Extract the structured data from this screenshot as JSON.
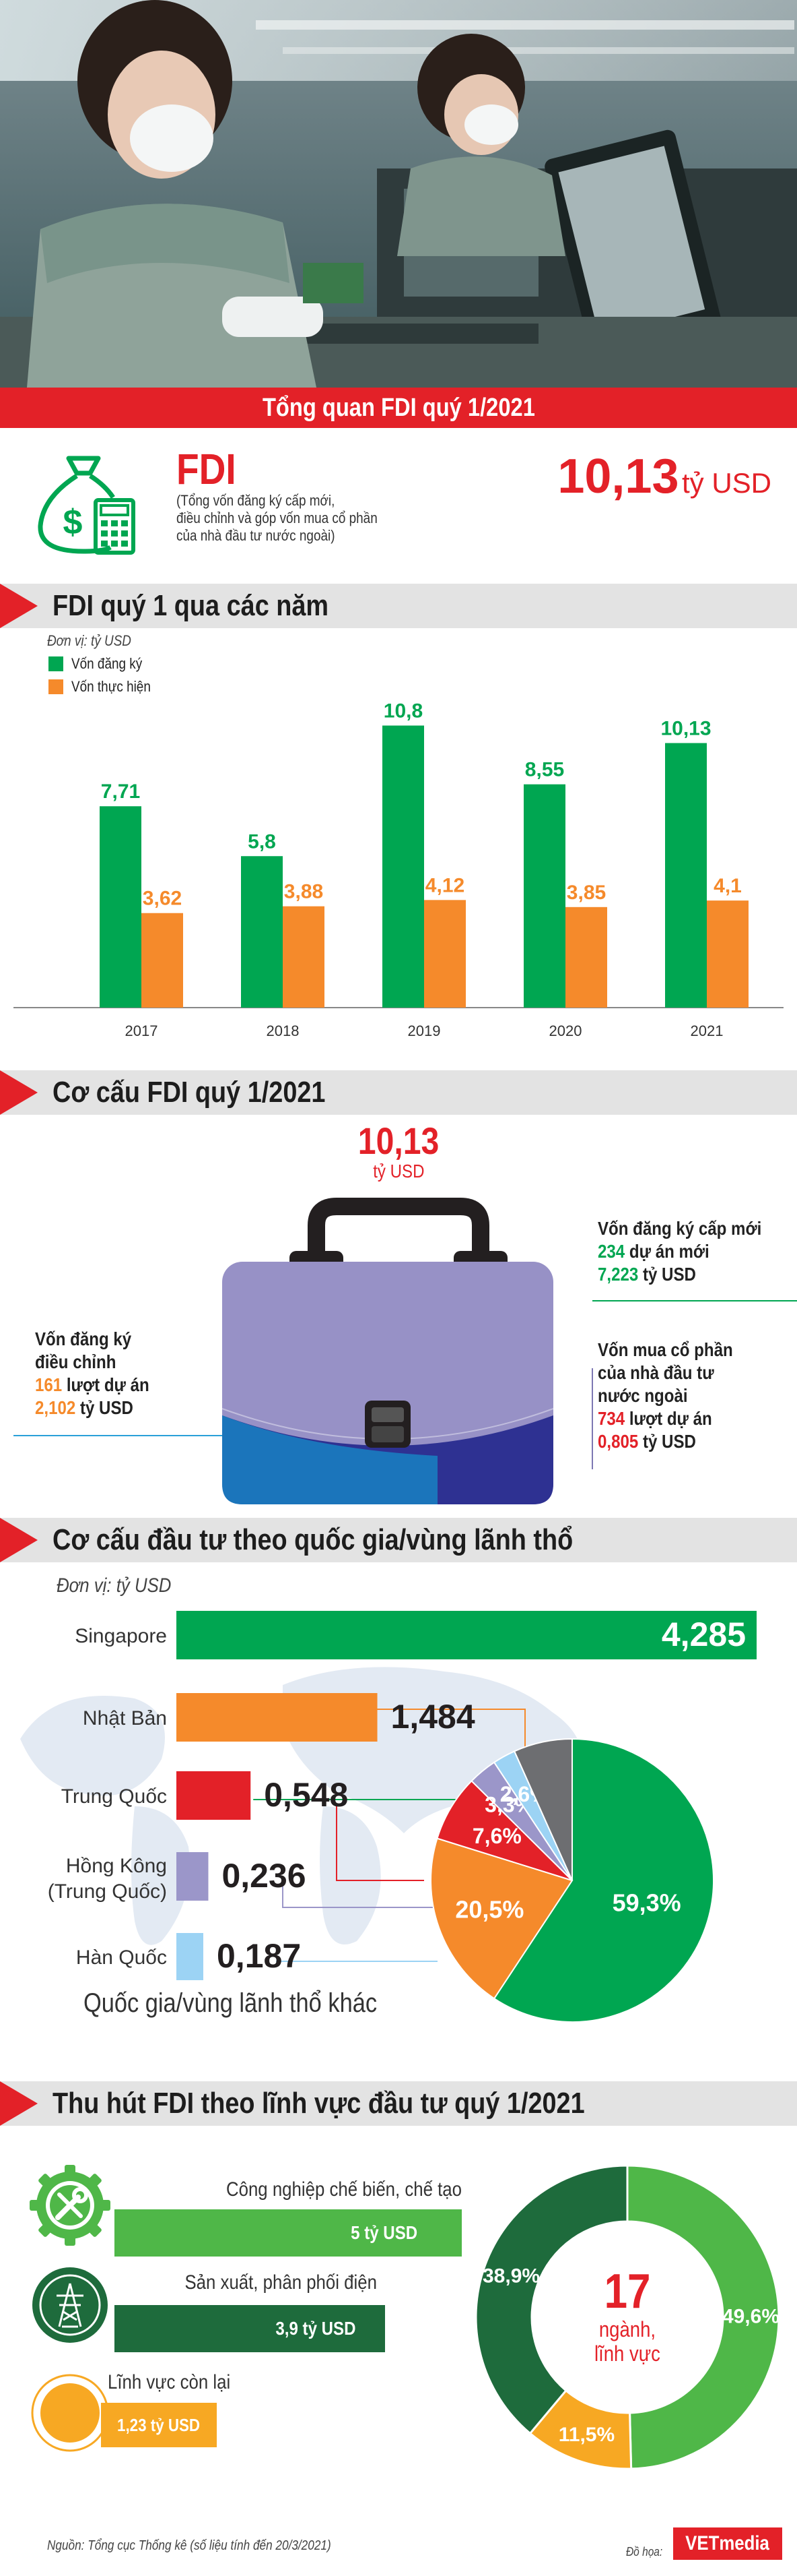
{
  "banner_title": "Tổng quan FDI quý 1/2021",
  "summary": {
    "label": "FDI",
    "description_lines": [
      "(Tổng vốn đăng ký cấp mới,",
      "điều chỉnh và góp vốn mua cổ phần",
      "của nhà đầu tư nước ngoài)"
    ],
    "total_value": "10,13",
    "total_unit": "tỷ USD"
  },
  "section1_title": "FDI quý 1 qua các năm",
  "section2_title": "Cơ cấu FDI quý 1/2021",
  "section3_title": "Cơ cấu đầu tư theo quốc gia/vùng lãnh thổ",
  "section4_title": "Thu hút FDI theo lĩnh vực đầu tư quý 1/2021",
  "colors": {
    "red": "#e32128",
    "green": "#00a651",
    "orange": "#f58a2b",
    "dark_green": "#1e6b3c",
    "light_green": "#4fb748",
    "yellow": "#f7a823",
    "purple": "#9b96c9",
    "light_blue": "#9cd3f4",
    "gray": "#6d6e71",
    "bag_purple": "#9791c6"
  },
  "structure": {
    "total_value": "10,13",
    "total_unit": "tỷ USD",
    "new": {
      "title": "Vốn đăng ký cấp mới",
      "projects_value": "234",
      "projects_text": "dự án mới",
      "capital_value": "7,223",
      "capital_unit": "tỷ USD"
    },
    "adjusted": {
      "title_lines": [
        "Vốn đăng ký",
        "điều chỉnh"
      ],
      "projects_value": "161",
      "projects_text": "lượt dự án",
      "capital_value": "2,102",
      "capital_unit": "tỷ USD"
    },
    "shares": {
      "title_lines": [
        "Vốn mua cổ phần",
        "của nhà đầu tư",
        "nước ngoài"
      ],
      "projects_value": "734",
      "projects_text": "lượt dự án",
      "capital_value": "0,805",
      "capital_unit": "tỷ USD"
    }
  },
  "sectors": {
    "items": [
      {
        "label": "Công nghiệp chế biến, chế tạo",
        "value_text": "5 tỷ USD",
        "icon": "gear-wrench-icon"
      },
      {
        "label": "Sản xuất, phân phối điện",
        "value_text": "3,9 tỷ USD",
        "icon": "power-tower-icon"
      },
      {
        "label": "Lĩnh vực còn lại",
        "value_text": "1,23 tỷ USD",
        "icon": "circle-icon"
      }
    ],
    "donut_center_number": "17",
    "donut_center_line1": "ngành,",
    "donut_center_line2": "lĩnh vực"
  },
  "footer": {
    "source": "Nguồn: Tổng cục Thống kê (số liệu tính đến 20/3/2021)",
    "credit_label": "Đồ họa:",
    "brand": "VETmedia"
  },
  "chart_data": [
    {
      "type": "bar",
      "unit_label": "Đơn vị: tỷ USD",
      "categories": [
        "2017",
        "2018",
        "2019",
        "2020",
        "2021"
      ],
      "series": [
        {
          "name": "Vốn đăng ký",
          "values": [
            7.71,
            5.8,
            10.8,
            8.55,
            10.13
          ],
          "labels": [
            "7,71",
            "5,8",
            "10,8",
            "8,55",
            "10,13"
          ],
          "color": "#00a651"
        },
        {
          "name": "Vốn thực hiện",
          "values": [
            3.62,
            3.88,
            4.12,
            3.85,
            4.1
          ],
          "labels": [
            "3,62",
            "3,88",
            "4,12",
            "3,85",
            "4,1"
          ],
          "color": "#f58a2b"
        }
      ],
      "legend": "top-left"
    },
    {
      "type": "bar",
      "orientation": "horizontal",
      "unit_label": "Đơn vị: tỷ USD",
      "categories": [
        "Singapore",
        "Nhật Bản",
        "Trung Quốc",
        "Hồng Kông (Trung Quốc)",
        "Hàn Quốc"
      ],
      "values": [
        4.285,
        1.484,
        0.548,
        0.236,
        0.187
      ],
      "labels": [
        "4,285",
        "1,484",
        "0,548",
        "0,236",
        "0,187"
      ],
      "colors": [
        "#00a651",
        "#f58a2b",
        "#e32128",
        "#9b96c9",
        "#9cd3f4"
      ]
    },
    {
      "type": "pie",
      "categories": [
        "Singapore",
        "Nhật Bản",
        "Trung Quốc",
        "Hồng Kông (Trung Quốc)",
        "Hàn Quốc",
        "Quốc gia/vùng lãnh thổ khác"
      ],
      "values": [
        59.3,
        20.5,
        7.6,
        3.3,
        2.6,
        6.7
      ],
      "labels": [
        "59,3%",
        "20,5%",
        "7,6%",
        "3,3%",
        "2,6%",
        ""
      ],
      "colors": [
        "#00a651",
        "#f58a2b",
        "#e32128",
        "#9b96c9",
        "#9cd3f4",
        "#6d6e71"
      ]
    },
    {
      "type": "pie",
      "categories": [
        "Công nghiệp chế biến, chế tạo",
        "Sản xuất, phân phối điện",
        "Lĩnh vực còn lại"
      ],
      "values": [
        49.6,
        38.9,
        11.5
      ],
      "labels": [
        "49,6%",
        "38,9%",
        "11,5%"
      ],
      "colors": [
        "#4fb748",
        "#1e6b3c",
        "#f7a823"
      ]
    }
  ]
}
